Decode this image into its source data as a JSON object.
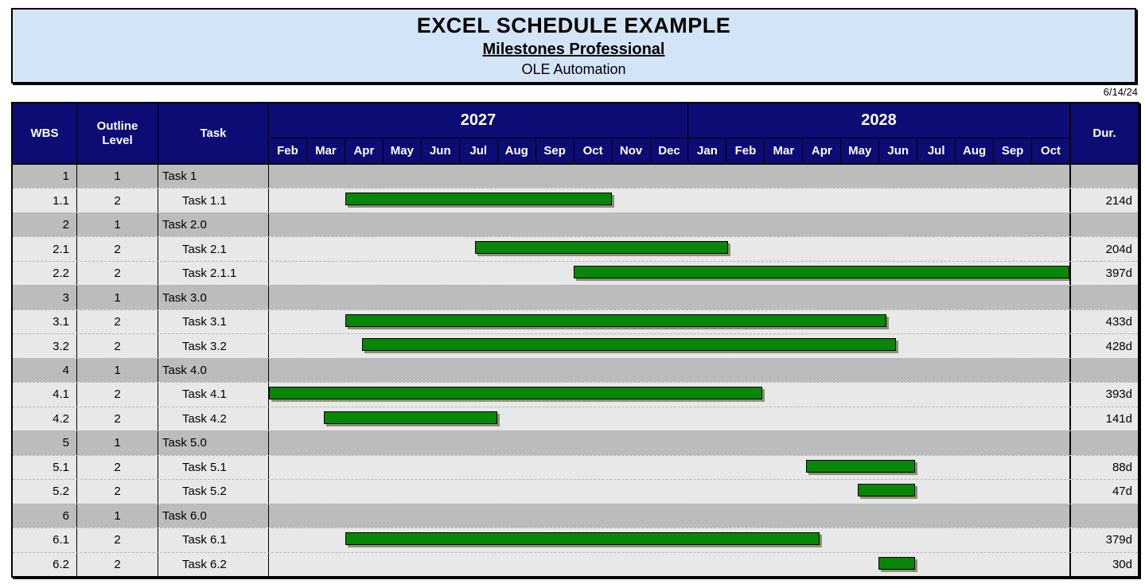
{
  "banner": {
    "title": "EXCEL SCHEDULE EXAMPLE",
    "subtitle": "Milestones Professional",
    "subtitle2": "OLE Automation"
  },
  "report_date": "6/14/24",
  "table": {
    "headers": {
      "wbs": "WBS",
      "outline": "Outline Level",
      "task": "Task",
      "dur": "Dur."
    },
    "years": [
      {
        "label": "2027",
        "months": [
          "Feb",
          "Mar",
          "Apr",
          "May",
          "Jun",
          "Jul",
          "Aug",
          "Sep",
          "Oct",
          "Nov",
          "Dec"
        ]
      },
      {
        "label": "2028",
        "months": [
          "Jan",
          "Feb",
          "Mar",
          "Apr",
          "May",
          "Jun",
          "Jul",
          "Aug",
          "Sep",
          "Oct"
        ]
      }
    ]
  },
  "rows": [
    {
      "wbs": "1",
      "level": "1",
      "task": "Task 1",
      "dur": "",
      "bar": null
    },
    {
      "wbs": "1.1",
      "level": "2",
      "task": "Task 1.1",
      "dur": "214d",
      "bar": {
        "start": 2.0,
        "end": 9.0
      }
    },
    {
      "wbs": "2",
      "level": "1",
      "task": "Task 2.0",
      "dur": "",
      "bar": null
    },
    {
      "wbs": "2.1",
      "level": "2",
      "task": "Task 2.1",
      "dur": "204d",
      "bar": {
        "start": 5.4,
        "end": 12.05
      }
    },
    {
      "wbs": "2.2",
      "level": "2",
      "task": "Task 2.1.1",
      "dur": "397d",
      "bar": {
        "start": 8.0,
        "end": 21.0
      }
    },
    {
      "wbs": "3",
      "level": "1",
      "task": "Task 3.0",
      "dur": "",
      "bar": null
    },
    {
      "wbs": "3.1",
      "level": "2",
      "task": "Task 3.1",
      "dur": "433d",
      "bar": {
        "start": 2.0,
        "end": 16.2
      }
    },
    {
      "wbs": "3.2",
      "level": "2",
      "task": "Task 3.2",
      "dur": "428d",
      "bar": {
        "start": 2.45,
        "end": 16.45
      }
    },
    {
      "wbs": "4",
      "level": "1",
      "task": "Task 4.0",
      "dur": "",
      "bar": null
    },
    {
      "wbs": "4.1",
      "level": "2",
      "task": "Task 4.1",
      "dur": "393d",
      "bar": {
        "start": 0.0,
        "end": 12.95
      }
    },
    {
      "wbs": "4.2",
      "level": "2",
      "task": "Task 4.2",
      "dur": "141d",
      "bar": {
        "start": 1.43,
        "end": 6.0
      }
    },
    {
      "wbs": "5",
      "level": "1",
      "task": "Task 5.0",
      "dur": "",
      "bar": null
    },
    {
      "wbs": "5.1",
      "level": "2",
      "task": "Task 5.1",
      "dur": "88d",
      "bar": {
        "start": 14.1,
        "end": 16.95
      }
    },
    {
      "wbs": "5.2",
      "level": "2",
      "task": "Task 5.2",
      "dur": "47d",
      "bar": {
        "start": 15.45,
        "end": 16.95
      }
    },
    {
      "wbs": "6",
      "level": "1",
      "task": "Task 6.0",
      "dur": "",
      "bar": null
    },
    {
      "wbs": "6.1",
      "level": "2",
      "task": "Task 6.1",
      "dur": "379d",
      "bar": {
        "start": 2.0,
        "end": 14.45
      }
    },
    {
      "wbs": "6.2",
      "level": "2",
      "task": "Task 6.2",
      "dur": "30d",
      "bar": {
        "start": 16.0,
        "end": 16.95
      }
    }
  ],
  "chart_data": {
    "type": "bar",
    "subtype": "gantt",
    "title": "EXCEL SCHEDULE EXAMPLE",
    "timeline": {
      "unit": "month",
      "start": "Feb 2027",
      "end": "Oct 2028",
      "total_months": 21
    },
    "legend_position": "none",
    "grid": "dashed horizontal row separators only",
    "tasks": [
      {
        "name": "Task 1.1",
        "duration_days": 214,
        "start_month_offset": 2.0,
        "end_month_offset": 9.0
      },
      {
        "name": "Task 2.1",
        "duration_days": 204,
        "start_month_offset": 5.4,
        "end_month_offset": 12.05
      },
      {
        "name": "Task 2.1.1",
        "duration_days": 397,
        "start_month_offset": 8.0,
        "end_month_offset": 21.0
      },
      {
        "name": "Task 3.1",
        "duration_days": 433,
        "start_month_offset": 2.0,
        "end_month_offset": 16.2
      },
      {
        "name": "Task 3.2",
        "duration_days": 428,
        "start_month_offset": 2.45,
        "end_month_offset": 16.45
      },
      {
        "name": "Task 4.1",
        "duration_days": 393,
        "start_month_offset": 0.0,
        "end_month_offset": 12.95
      },
      {
        "name": "Task 4.2",
        "duration_days": 141,
        "start_month_offset": 1.43,
        "end_month_offset": 6.0
      },
      {
        "name": "Task 5.1",
        "duration_days": 88,
        "start_month_offset": 14.1,
        "end_month_offset": 16.95
      },
      {
        "name": "Task 5.2",
        "duration_days": 47,
        "start_month_offset": 15.45,
        "end_month_offset": 16.95
      },
      {
        "name": "Task 6.1",
        "duration_days": 379,
        "start_month_offset": 2.0,
        "end_month_offset": 14.45
      },
      {
        "name": "Task 6.2",
        "duration_days": 30,
        "start_month_offset": 16.0,
        "end_month_offset": 16.95
      }
    ]
  },
  "colors": {
    "header_navy": "#0c0c74",
    "banner_blue": "#d3e4f6",
    "bar_green": "#078607",
    "bar_shadow": "#8f8f78",
    "row_level1_gray": "#bcbcbc",
    "row_level2_gray": "#e8e8e8"
  }
}
